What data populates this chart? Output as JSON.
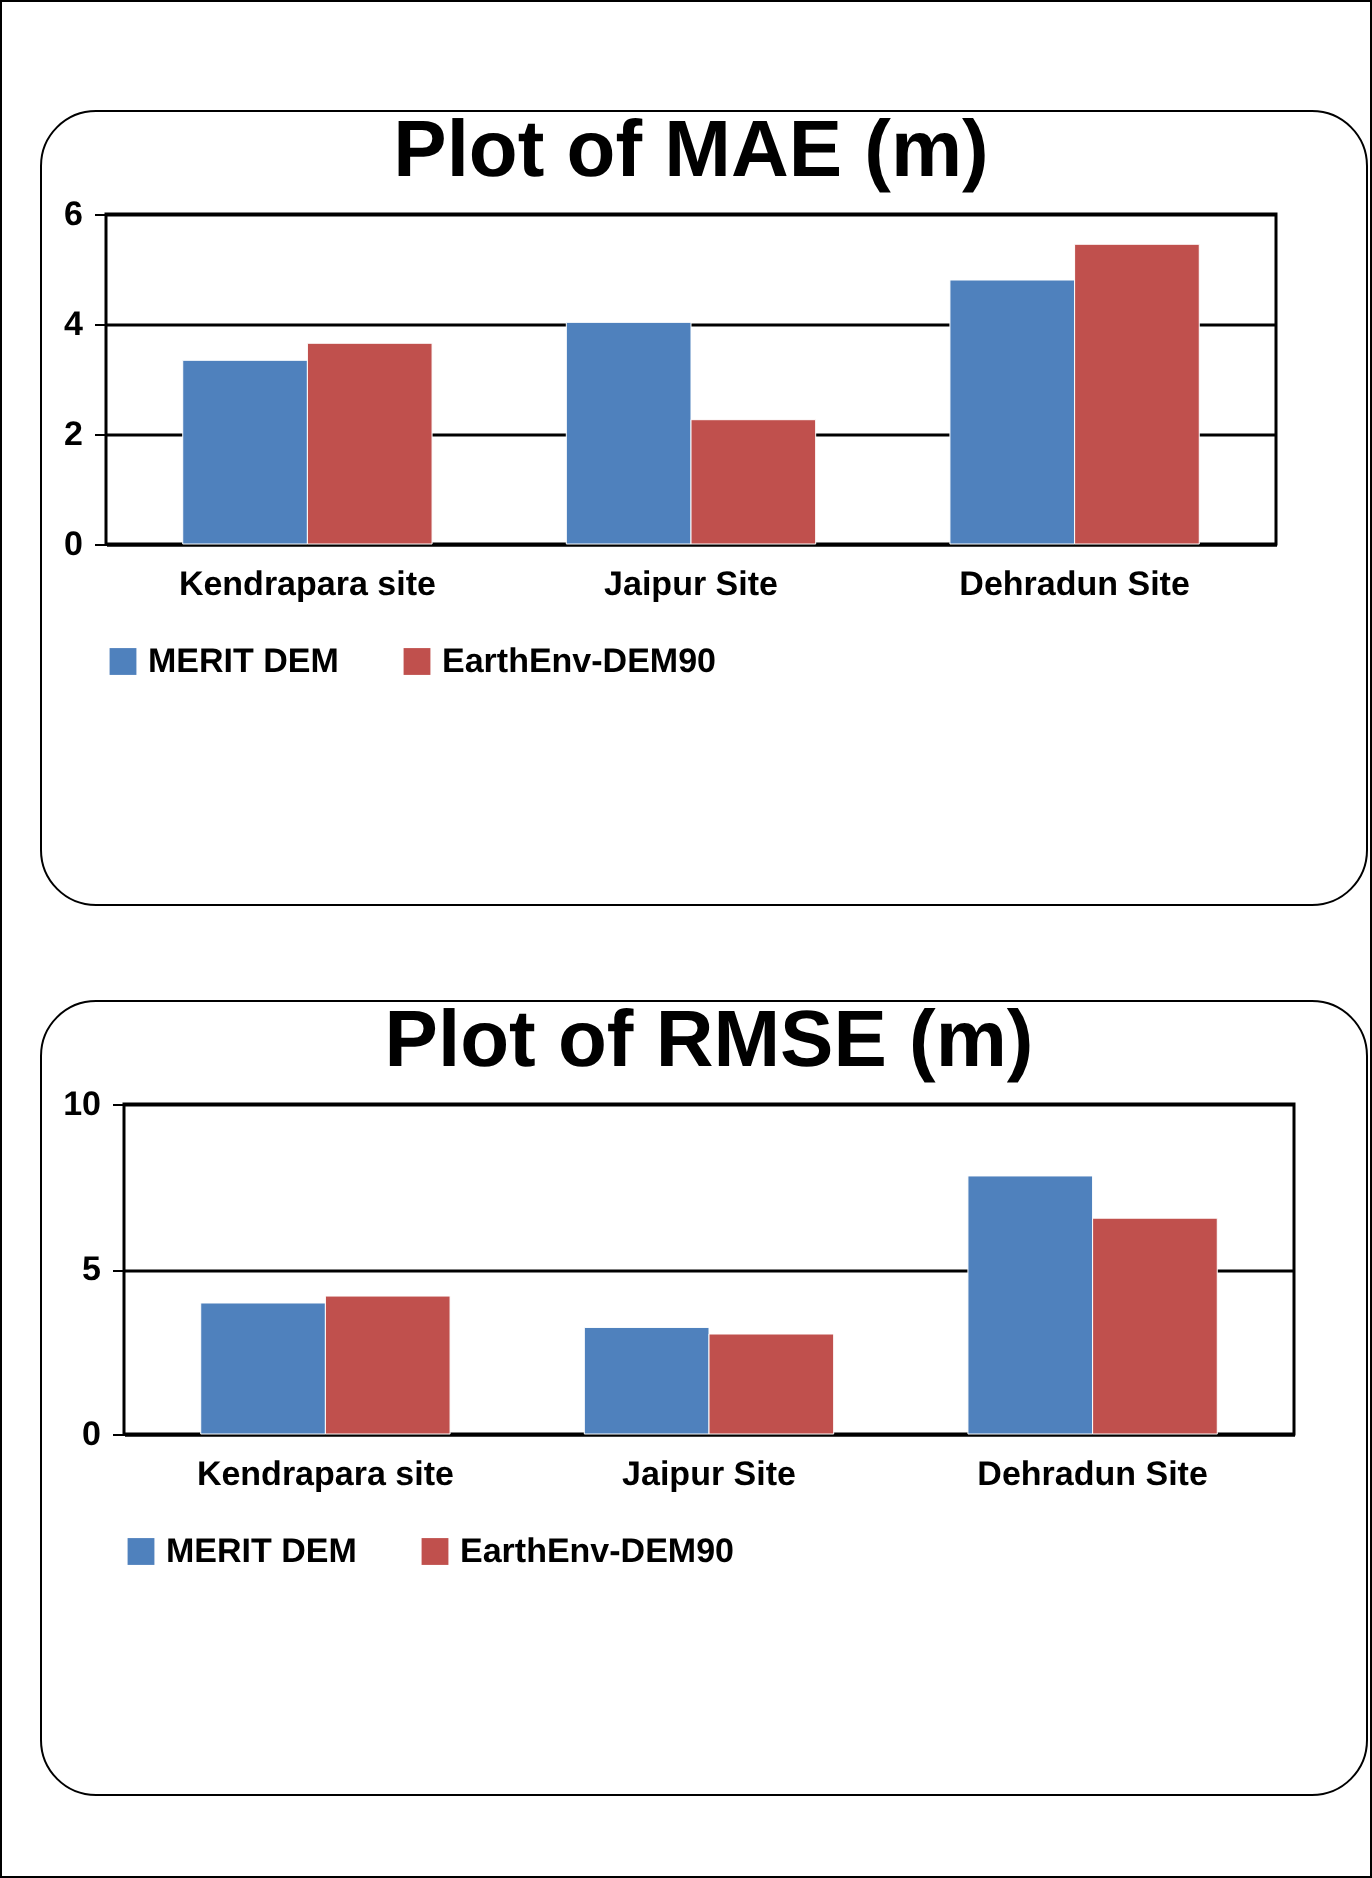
{
  "chart_data": [
    {
      "type": "bar",
      "title": "Plot of MAE (m)",
      "categories": [
        "Kendrapara site",
        "Jaipur Site",
        "Dehradun Site"
      ],
      "series": [
        {
          "name": "MERIT DEM",
          "color": "#4f81bd",
          "values": [
            3.34,
            4.03,
            4.8
          ]
        },
        {
          "name": "EarthEnv-DEM90",
          "color": "#c0504d",
          "values": [
            3.65,
            2.26,
            5.45
          ]
        }
      ],
      "ylim": [
        0,
        6
      ],
      "yticks": [
        0,
        2,
        4,
        6
      ],
      "grid": "y",
      "legend": "bottom"
    },
    {
      "type": "bar",
      "title": "Plot of RMSE (m)",
      "categories": [
        "Kendrapara site",
        "Jaipur Site",
        "Dehradun Site"
      ],
      "series": [
        {
          "name": "MERIT DEM",
          "color": "#4f81bd",
          "values": [
            3.97,
            3.23,
            7.82
          ]
        },
        {
          "name": "EarthEnv-DEM90",
          "color": "#c0504d",
          "values": [
            4.18,
            3.03,
            6.54
          ]
        }
      ],
      "ylim": [
        0,
        10
      ],
      "yticks": [
        0,
        5,
        10
      ],
      "grid": "y",
      "legend": "bottom"
    }
  ]
}
